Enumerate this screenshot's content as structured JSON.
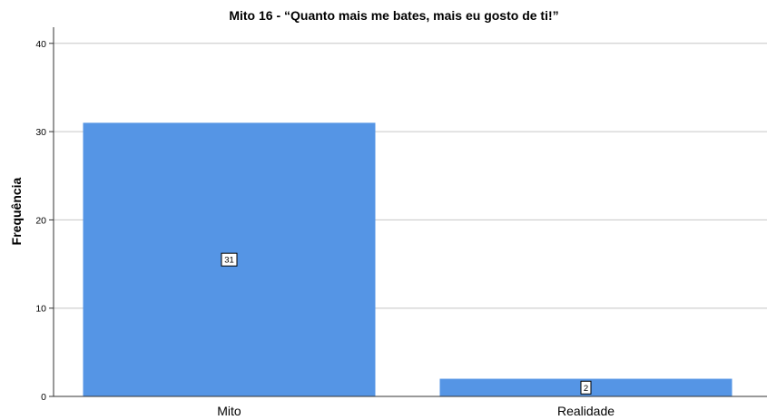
{
  "chart_data": {
    "type": "bar",
    "title": "Mito 16 - “Quanto mais me bates, mais eu gosto de ti!”",
    "xlabel": "",
    "ylabel": "Frequência",
    "categories": [
      "Mito",
      "Realidade"
    ],
    "values": [
      31,
      2
    ],
    "data_labels": [
      "31",
      "2"
    ],
    "ylim": [
      0,
      42
    ],
    "yticks": [
      0,
      10,
      20,
      30,
      40
    ],
    "grid": true,
    "bar_color": "#5595e5",
    "legend": "none"
  }
}
